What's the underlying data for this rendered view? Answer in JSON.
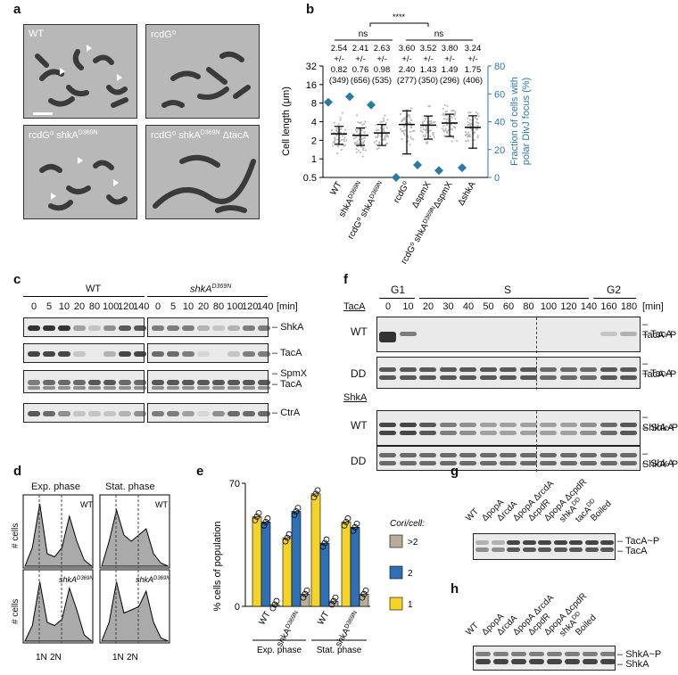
{
  "panels": {
    "a": "a",
    "b": "b",
    "c": "c",
    "d": "d",
    "e": "e",
    "f": "f",
    "g": "g",
    "h": "h"
  },
  "panel_a": {
    "labels": [
      "WT",
      "rcdG⁰",
      "rcdG⁰ shkA",
      "rcdG⁰ shkA"
    ],
    "sup": {
      "d369n": "D369N"
    },
    "tacA": "ΔtacA"
  },
  "panel_b": {
    "sig_ns": "ns",
    "sig_star": "****",
    "stats": [
      {
        "mean": "2.54",
        "pm": "+/-",
        "sd": "0.82",
        "n": "(349)"
      },
      {
        "mean": "2.41",
        "pm": "+/-",
        "sd": "0.76",
        "n": "(656)"
      },
      {
        "mean": "2.63",
        "pm": "+/-",
        "sd": "0.98",
        "n": "(535)"
      },
      {
        "mean": "3.60",
        "pm": "+/-",
        "sd": "2.40",
        "n": "(277)"
      },
      {
        "mean": "3.52",
        "pm": "+/-",
        "sd": "1.43",
        "n": "(350)"
      },
      {
        "mean": "3.80",
        "pm": "+/-",
        "sd": "1.49",
        "n": "(296)"
      },
      {
        "mean": "3.24",
        "pm": "+/-",
        "sd": "1.75",
        "n": "(406)"
      }
    ],
    "ylabel_left": "Cell length (μm)",
    "ylabel_right_1": "Fraction of cells with",
    "ylabel_right_2": "polar DivJ focus (%)",
    "left_ticks": [
      "32",
      "16",
      "8",
      "4",
      "2",
      "1",
      "0.5"
    ],
    "right_ticks": [
      "80",
      "60",
      "40",
      "20",
      "0"
    ],
    "xlabels": [
      "WT",
      "shkA",
      "rcdG⁰ shkA",
      "rcdG⁰",
      "ΔspmX",
      "rcdG⁰ shkA",
      "ΔshkA"
    ],
    "xlabel_sup": "D369N",
    "xlabel_6_suffix": "ΔspmX"
  },
  "chart_data": {
    "type": "scatter",
    "categories": [
      "WT",
      "shkA D369N",
      "rcdG⁰ shkA D369N",
      "rcdG⁰",
      "ΔspmX",
      "rcdG⁰ shkA D369N ΔspmX",
      "ΔshkA"
    ],
    "series": [
      {
        "name": "Cell length (μm)",
        "values": [
          2.54,
          2.41,
          2.63,
          3.6,
          3.52,
          3.8,
          3.24
        ],
        "sd": [
          0.82,
          0.76,
          0.98,
          2.4,
          1.43,
          1.49,
          1.75
        ]
      },
      {
        "name": "Fraction of cells with polar DivJ focus (%)",
        "values": [
          54,
          58,
          52,
          0,
          9,
          5,
          7
        ]
      }
    ],
    "ylim_left": [
      0.5,
      32
    ],
    "ylim_right": [
      0,
      80
    ],
    "yscale_left": "log2",
    "accent_color": "#2a7aa8"
  },
  "panel_c": {
    "wt_title": "WT",
    "mut_title": "shkA",
    "mut_sup": "D369N",
    "times": [
      "0",
      "5",
      "10",
      "20",
      "80",
      "100",
      "120",
      "140"
    ],
    "unit": "[min]",
    "rows": [
      "ShkA",
      "TacA",
      "SpmX",
      "TacA",
      "CtrA"
    ]
  },
  "panel_d": {
    "exp": "Exp. phase",
    "stat": "Stat. phase",
    "ylabel": "# cells",
    "wt": "WT",
    "mut": "shkA",
    "mut_sup": "D369N",
    "x1": "1N",
    "x2": "2N"
  },
  "panel_e": {
    "ylabel": "% cells of population",
    "ymax": "70",
    "ymin": "0",
    "xlabels": [
      "WT",
      "shkA",
      "WT",
      "shkA"
    ],
    "xsup": "D369N",
    "group1": "Exp. phase",
    "group2": "Stat. phase",
    "legend_title": "Cori/cell:",
    "legend": [
      ">2",
      "2",
      "1"
    ],
    "colors": {
      "gt2": "#b9ad9a",
      "two": "#2e6fb5",
      "one": "#f5d327"
    },
    "values": {
      "one": [
        51,
        39,
        64,
        48
      ],
      "two": [
        48,
        54,
        36,
        45
      ],
      "gt2": [
        1,
        7,
        3,
        7
      ]
    }
  },
  "panel_f": {
    "g1": "G1",
    "s": "S",
    "g2": "G2",
    "times": [
      "0",
      "10",
      "20",
      "30",
      "40",
      "50",
      "60",
      "80",
      "100",
      "120",
      "140",
      "160",
      "180"
    ],
    "unit": "[min]",
    "tacA": "TacA",
    "shkA": "ShkA",
    "wt": "WT",
    "dd": "DD",
    "tacA_p": "TacA~P",
    "shkA_p": "ShkA~P"
  },
  "panel_g": {
    "lanes": [
      "WT",
      "ΔpopA",
      "ΔrcdA",
      "ΔpopA ΔrcdA",
      "ΔcpdR",
      "ΔpopA ΔcpdR",
      "shkA",
      "tacA",
      "Boiled"
    ],
    "dd": "DD",
    "band1": "TacA~P",
    "band2": "TacA"
  },
  "panel_h": {
    "lanes": [
      "WT",
      "ΔpopA",
      "ΔrcdA",
      "ΔpopA ΔrcdA",
      "ΔcpdR",
      "ΔpopA ΔcpdR",
      "shkA",
      "Boiled"
    ],
    "dd": "DD",
    "band1": "ShkA~P",
    "band2": "ShkA"
  }
}
